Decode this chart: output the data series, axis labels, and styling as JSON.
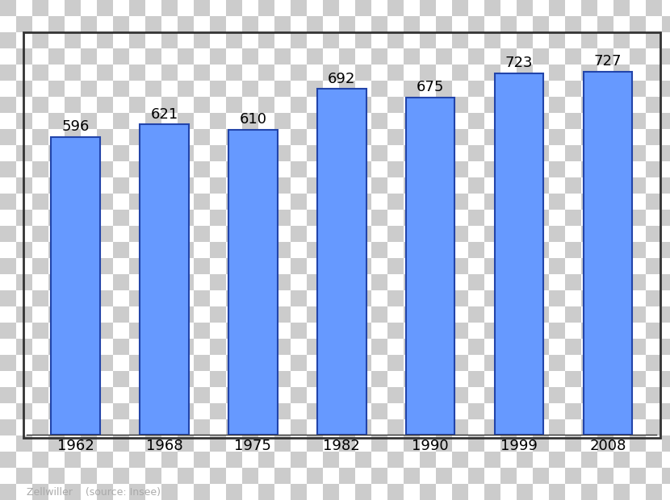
{
  "years": [
    "1962",
    "1968",
    "1975",
    "1982",
    "1990",
    "1999",
    "2008"
  ],
  "values": [
    596,
    621,
    610,
    692,
    675,
    723,
    727
  ],
  "bar_color": "#6699ff",
  "bar_edge_color": "#2244aa",
  "label_fontsize": 13,
  "tick_fontsize": 13,
  "source_text": "Zellwiller    (source: Insee)",
  "source_fontsize": 9,
  "source_color": "#aaaaaa",
  "ylim": [
    0,
    800
  ],
  "bar_width": 0.55,
  "checker_light": "#dddddd",
  "checker_dark": "#cccccc",
  "checker_size": 20,
  "border_color": "#333333",
  "border_linewidth": 2.0
}
